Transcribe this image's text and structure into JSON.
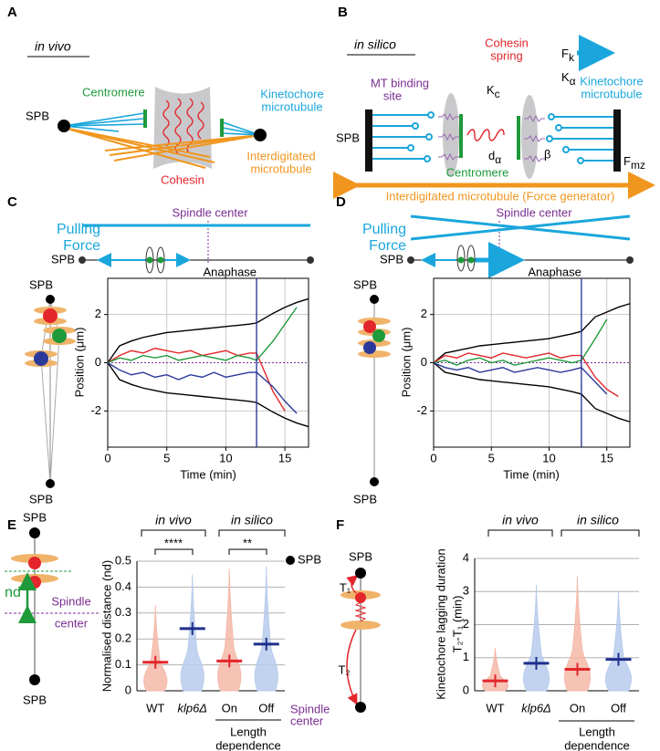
{
  "panels": {
    "A": {
      "label": "A",
      "context": "in vivo",
      "spb": "SPB",
      "centromere": "Centromere",
      "kinetochore_mt": [
        "Kinetochore",
        "microtubule"
      ],
      "interdigitated_mt": [
        "Interdigitated",
        "microtubule"
      ],
      "cohesin": "Cohesin"
    },
    "B": {
      "label": "B",
      "context": "in silico",
      "cohesin_spring": [
        "Cohesin",
        "spring"
      ],
      "force_k": {
        "symbol": "F",
        "sub": "k"
      },
      "mt_binding_site": [
        "MT binding",
        "site"
      ],
      "kc": {
        "symbol": "K",
        "sub": "c"
      },
      "ka": {
        "symbol": "K",
        "sub": "α"
      },
      "kinetochore_mt": [
        "Kinetochore",
        "microtubule"
      ],
      "spb": "SPB",
      "da": {
        "symbol": "d",
        "sub": "α"
      },
      "beta": "β",
      "centromere": "Centromere",
      "fmz": {
        "symbol": "F",
        "sub": "mz"
      },
      "interdigitated_mt": "Interdigitated microtubule (Force generator)"
    },
    "C": {
      "label": "C",
      "pulling_force": [
        "Pulling",
        "Force"
      ],
      "spindle_center": "Spindle center",
      "spb": "SPB",
      "cartoon_spb": [
        "SPB",
        "SPB"
      ],
      "chart": {
        "type": "line",
        "xlabel": "Time (min)",
        "ylabel": "Position (μm)",
        "xlim": [
          0,
          17
        ],
        "ylim": [
          -3.5,
          3.5
        ],
        "xticks": [
          0,
          5,
          10,
          15
        ],
        "yticks": [
          -2,
          0,
          2
        ],
        "grid": true,
        "anaphase": {
          "label": "Anaphase",
          "x": 12.6
        },
        "x": [
          0,
          1,
          2,
          3,
          4,
          5,
          6,
          7,
          8,
          9,
          10,
          11,
          12,
          12.6,
          14,
          15,
          16,
          17
        ],
        "series": [
          {
            "color": "#000000",
            "values": [
              0,
              0.7,
              0.9,
              1.05,
              1.15,
              1.25,
              1.3,
              1.35,
              1.4,
              1.45,
              1.5,
              1.55,
              1.6,
              1.65,
              2.05,
              2.3,
              2.5,
              2.65
            ]
          },
          {
            "color": "#000000",
            "values": [
              0,
              -0.7,
              -0.9,
              -1.05,
              -1.15,
              -1.25,
              -1.3,
              -1.35,
              -1.4,
              -1.45,
              -1.5,
              -1.55,
              -1.6,
              -1.65,
              -2.05,
              -2.3,
              -2.5,
              -2.65
            ]
          },
          {
            "color": "#e3262b",
            "values": [
              0,
              0.3,
              0.5,
              0.4,
              0.6,
              0.5,
              0.4,
              0.5,
              0.3,
              0.4,
              0.5,
              0.3,
              0.4,
              0.4,
              -1.2,
              -2.0,
              null,
              null
            ]
          },
          {
            "color": "#1f9a3a",
            "values": [
              0,
              0.2,
              0.1,
              0.3,
              0.2,
              0.3,
              0.1,
              0.2,
              0.3,
              0.2,
              0.1,
              0.3,
              0.2,
              0.1,
              0.9,
              1.6,
              2.3,
              null
            ]
          },
          {
            "color": "#2b3a9a",
            "values": [
              0,
              -0.3,
              -0.5,
              -0.4,
              -0.6,
              -0.5,
              -0.7,
              -0.5,
              -0.6,
              -0.4,
              -0.6,
              -0.5,
              -0.4,
              -0.4,
              -1.0,
              -1.6,
              -2.1,
              null
            ]
          }
        ]
      }
    },
    "D": {
      "label": "D",
      "pulling_force": [
        "Pulling",
        "Force"
      ],
      "spindle_center": "Spindle center",
      "spb": "SPB",
      "cartoon_spb": [
        "SPB",
        "SPB"
      ],
      "chart": {
        "type": "line",
        "xlabel": "Time (min)",
        "ylabel": "Position (μm)",
        "xlim": [
          0,
          17
        ],
        "ylim": [
          -3.5,
          3.5
        ],
        "xticks": [
          0,
          5,
          10,
          15
        ],
        "yticks": [
          -2,
          0,
          2
        ],
        "grid": true,
        "anaphase": {
          "label": "Anaphase",
          "x": 12.8
        },
        "x": [
          0,
          1,
          2,
          3,
          4,
          5,
          6,
          7,
          8,
          9,
          10,
          11,
          12,
          12.8,
          14,
          15,
          16,
          17
        ],
        "series": [
          {
            "color": "#000000",
            "values": [
              0,
              0.4,
              0.5,
              0.6,
              0.7,
              0.75,
              0.8,
              0.85,
              0.9,
              0.95,
              1.0,
              1.1,
              1.2,
              1.3,
              1.9,
              2.1,
              2.3,
              2.45
            ]
          },
          {
            "color": "#000000",
            "values": [
              0,
              -0.4,
              -0.5,
              -0.6,
              -0.7,
              -0.75,
              -0.8,
              -0.85,
              -0.9,
              -0.95,
              -1.0,
              -1.1,
              -1.2,
              -1.3,
              -1.9,
              -2.1,
              -2.3,
              -2.45
            ]
          },
          {
            "color": "#e3262b",
            "values": [
              0,
              0.3,
              0.2,
              0.4,
              0.3,
              0.2,
              0.4,
              0.3,
              0.2,
              0.3,
              0.4,
              0.2,
              0.3,
              0.3,
              -0.6,
              -1.1,
              -1.4,
              null
            ]
          },
          {
            "color": "#1f9a3a",
            "values": [
              0,
              0.1,
              -0.1,
              0.1,
              0.2,
              0.0,
              0.1,
              -0.1,
              0.0,
              0.1,
              0.2,
              0.1,
              0.0,
              0.1,
              1.0,
              1.8,
              null,
              null
            ]
          },
          {
            "color": "#2b3a9a",
            "values": [
              0,
              -0.2,
              -0.3,
              -0.2,
              -0.4,
              -0.3,
              -0.2,
              -0.4,
              -0.3,
              -0.2,
              -0.3,
              -0.4,
              -0.3,
              -0.2,
              -0.8,
              -1.3,
              null,
              null
            ]
          }
        ]
      }
    },
    "E": {
      "label": "E",
      "cartoon": {
        "spb_top": "SPB",
        "nd": "nd",
        "spindle_center": [
          "Spindle",
          "center"
        ],
        "spb_bottom": "SPB"
      },
      "chart": {
        "type": "violin",
        "ylabel": "Normalised distance (nd)",
        "ylim": [
          0,
          0.5
        ],
        "yticks": [
          0,
          0.1,
          0.2,
          0.3,
          0.4,
          0.5
        ],
        "grid": true,
        "categories": [
          "WT",
          "klp6Δ",
          "On",
          "Off"
        ],
        "medians": [
          0.11,
          0.24,
          0.115,
          0.18
        ],
        "maxima": [
          0.33,
          0.45,
          0.47,
          0.48
        ],
        "violin_colors": [
          "#f5b8a8",
          "#b7cbec",
          "#f5b8a8",
          "#b7cbec"
        ],
        "median_colors": [
          "#e3262b",
          "#1f2f8c",
          "#e3262b",
          "#1f2f8c"
        ],
        "label_colors": [
          "#e3262b",
          "#4a78c8",
          "#000000",
          "#000000"
        ],
        "groups": [
          "in vivo",
          "in silico"
        ],
        "significance": [
          "****",
          "**"
        ],
        "axis_note": [
          "Length",
          "dependence"
        ],
        "top_marker": "SPB",
        "bottom_marker": [
          "Spindle",
          "center"
        ]
      }
    },
    "F": {
      "label": "F",
      "cartoon": {
        "spb": "SPB",
        "t1": "T₁",
        "t2": "T₂"
      },
      "chart": {
        "type": "violin",
        "ylabel": [
          "Kinetochore lagging duration",
          "T₂-T₁ (min)"
        ],
        "ylim": [
          0,
          4
        ],
        "yticks": [
          0,
          1,
          2,
          3,
          4
        ],
        "grid": true,
        "categories": [
          "WT",
          "klp6Δ",
          "On",
          "Off"
        ],
        "medians": [
          0.3,
          0.83,
          0.65,
          0.95
        ],
        "maxima": [
          1.3,
          3.2,
          3.45,
          3.0
        ],
        "violin_colors": [
          "#f5b8a8",
          "#b7cbec",
          "#f5b8a8",
          "#b7cbec"
        ],
        "median_colors": [
          "#e3262b",
          "#1f2f8c",
          "#e3262b",
          "#1f2f8c"
        ],
        "label_colors": [
          "#e3262b",
          "#4a78c8",
          "#000000",
          "#000000"
        ],
        "groups": [
          "in vivo",
          "in silico"
        ],
        "axis_note": [
          "Length",
          "dependence"
        ]
      }
    }
  }
}
